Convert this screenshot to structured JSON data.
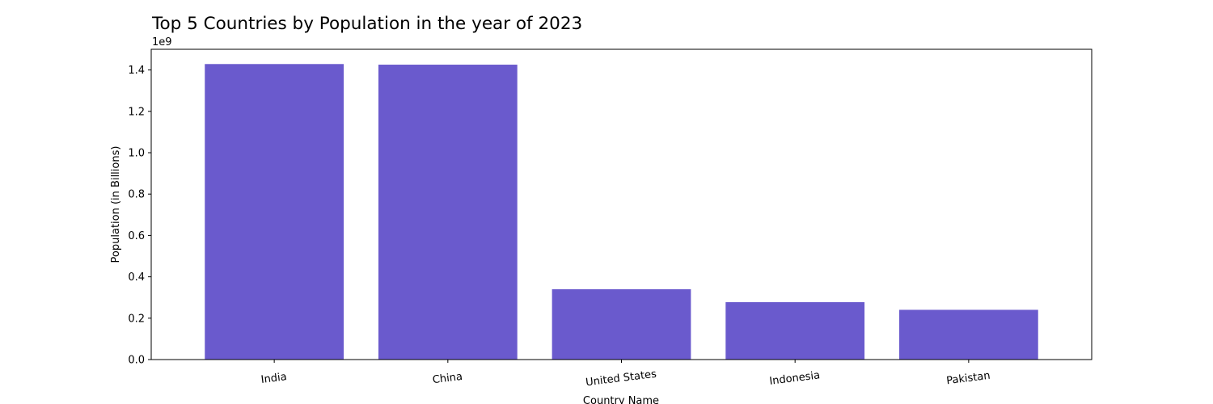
{
  "chart_data": {
    "type": "bar",
    "title": "Top 5 Countries by Population in the year of 2023",
    "xlabel": "Country Name",
    "ylabel": "Population (in Billions)",
    "offset_label": "1e9",
    "categories": [
      "India",
      "China",
      "United States",
      "Indonesia",
      "Pakistan"
    ],
    "values": [
      1428627663,
      1425671352,
      339996563,
      277534122,
      240485658
    ],
    "ylim": [
      0,
      1500000000
    ],
    "yticks": [
      0,
      200000000,
      400000000,
      600000000,
      800000000,
      1000000000,
      1200000000,
      1400000000
    ],
    "ytick_labels": [
      "0.0",
      "0.2",
      "0.4",
      "0.6",
      "0.8",
      "1.0",
      "1.2",
      "1.4"
    ],
    "bar_color": "#6a5acd",
    "grid": false,
    "legend": "none"
  }
}
